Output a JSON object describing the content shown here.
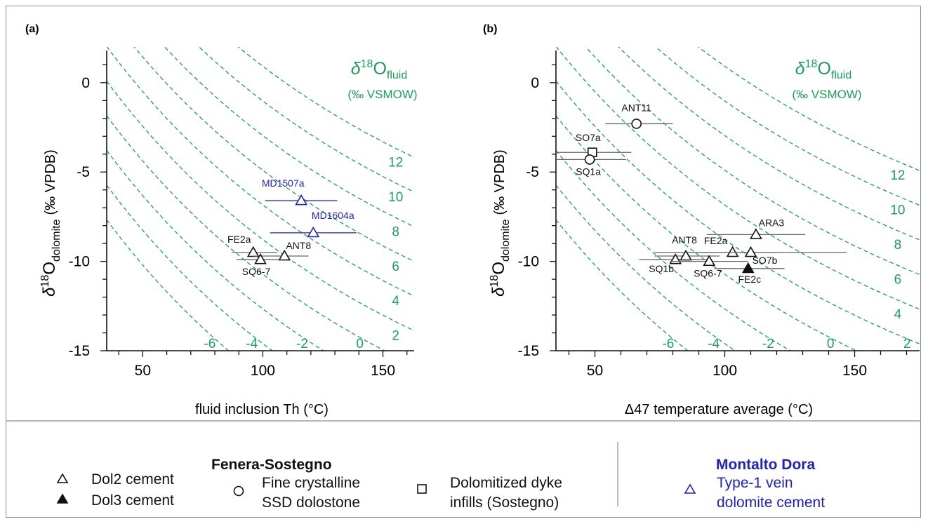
{
  "panels": [
    {
      "label": "(a)",
      "xlabel": "fluid inclusion Th (°C)",
      "ylabel_main": "δ",
      "ylabel_sup": "18",
      "ylabel_o": "O",
      "ylabel_sub": "dolomite",
      "ylabel_unit": "(‰ VPDB)",
      "annot_line1": "δ",
      "annot_sup": "18",
      "annot_o": "O",
      "annot_sub": "fluid",
      "annot_line2": "(‰ VSMOW)"
    },
    {
      "label": "(b)",
      "xlabel": "Δ47 temperature average (°C)",
      "ylabel_main": "δ",
      "ylabel_sup": "18",
      "ylabel_o": "O",
      "ylabel_sub": "dolomite",
      "ylabel_unit": "(‰ VPDB)",
      "annot_line1": "δ",
      "annot_sup": "18",
      "annot_o": "O",
      "annot_sub": "fluid",
      "annot_line2": "(‰ VSMOW)"
    }
  ],
  "chart_data": [
    {
      "type": "scatter",
      "title": "(a)",
      "xlabel": "fluid inclusion Th (°C)",
      "ylabel": "δ18O dolomite (‰ VPDB)",
      "xlim": [
        35,
        163
      ],
      "ylim": [
        -15,
        1.8
      ],
      "xticks": [
        50,
        100,
        150
      ],
      "yticks": [
        0,
        -5,
        -10,
        -15
      ],
      "isolines": {
        "label": "δ18O fluid (‰ VSMOW)",
        "values": [
          -6,
          -4,
          -2,
          0,
          2,
          4,
          6,
          8,
          10,
          12
        ],
        "color": "#1aa05a",
        "style": "dashed"
      },
      "points": [
        {
          "label": "FE2a",
          "x": 96,
          "y": -9.5,
          "xerr": [
            87,
            106
          ],
          "symbol": "open-triangle",
          "color": "#111111",
          "group": "Dol2 cement"
        },
        {
          "label": "ANT8",
          "x": 109,
          "y": -9.7,
          "xerr": [
            96,
            119
          ],
          "symbol": "open-triangle",
          "color": "#111111",
          "group": "Dol2 cement"
        },
        {
          "label": "SQ6-7",
          "x": 99,
          "y": -9.9,
          "xerr": [
            89,
            110
          ],
          "symbol": "open-triangle",
          "color": "#111111",
          "group": "Dol2 cement"
        },
        {
          "label": "MD1507a",
          "x": 116,
          "y": -6.6,
          "xerr": [
            101,
            131
          ],
          "symbol": "open-triangle",
          "color": "#2222bb",
          "group": "Type-1 vein dolomite cement"
        },
        {
          "label": "MD1604a",
          "x": 121,
          "y": -8.4,
          "xerr": [
            103,
            139
          ],
          "symbol": "open-triangle",
          "color": "#2222bb",
          "group": "Type-1 vein dolomite cement"
        }
      ]
    },
    {
      "type": "scatter",
      "title": "(b)",
      "xlabel": "Δ47 temperature average (°C)",
      "ylabel": "δ18O dolomite (‰ VPDB)",
      "xlim": [
        35,
        175
      ],
      "ylim": [
        -15,
        1.8
      ],
      "xticks": [
        50,
        100,
        150
      ],
      "yticks": [
        0,
        -5,
        -10,
        -15
      ],
      "isolines": {
        "label": "δ18O fluid (‰ VSMOW)",
        "values": [
          -6,
          -4,
          -2,
          0,
          2,
          4,
          6,
          8,
          10,
          12
        ],
        "color": "#1aa05a",
        "style": "dashed"
      },
      "points": [
        {
          "label": "ANT11",
          "x": 66,
          "y": -2.3,
          "xerr": [
            54,
            80
          ],
          "symbol": "open-circle",
          "color": "#111111",
          "group": "Fine crystalline SSD dolostone"
        },
        {
          "label": "SO7a",
          "x": 49,
          "y": -3.9,
          "xerr": [
            35,
            64
          ],
          "symbol": "open-square",
          "color": "#111111",
          "group": "Dolomitized dyke infills (Sostegno)"
        },
        {
          "label": "SQ1a",
          "x": 48,
          "y": -4.3,
          "xerr": [
            35,
            62
          ],
          "symbol": "open-circle",
          "color": "#111111",
          "group": "Fine crystalline SSD dolostone"
        },
        {
          "label": "ARA3",
          "x": 112,
          "y": -8.5,
          "xerr": [
            93,
            131
          ],
          "symbol": "open-triangle",
          "color": "#111111",
          "group": "Dol2 cement"
        },
        {
          "label": "FE2a",
          "x": 103,
          "y": -9.5,
          "xerr": [
            86,
            120
          ],
          "symbol": "open-triangle",
          "color": "#111111",
          "group": "Dol2 cement"
        },
        {
          "label": "SO7b",
          "x": 110,
          "y": -9.5,
          "xerr": [
            73,
            147
          ],
          "symbol": "open-triangle",
          "color": "#111111",
          "group": "Dol2 cement"
        },
        {
          "label": "ANT8",
          "x": 85,
          "y": -9.7,
          "xerr": [
            73,
            98
          ],
          "symbol": "open-triangle",
          "color": "#111111",
          "group": "Dol2 cement"
        },
        {
          "label": "SQ1b",
          "x": 81,
          "y": -9.9,
          "xerr": [
            67,
            94
          ],
          "symbol": "open-triangle",
          "color": "#111111",
          "group": "Dol2 cement"
        },
        {
          "label": "SQ6-7",
          "x": 94,
          "y": -10.0,
          "xerr": [
            79,
            109
          ],
          "symbol": "open-triangle",
          "color": "#111111",
          "group": "Dol2 cement"
        },
        {
          "label": "FE2c",
          "x": 109,
          "y": -10.4,
          "xerr": [
            96,
            123
          ],
          "symbol": "filled-triangle",
          "color": "#111111",
          "group": "Dol3 cement"
        }
      ]
    }
  ],
  "legend": {
    "left_title": "Fenera-Sostegno",
    "right_title": "Montalto Dora",
    "right_title_color": "#2222bb",
    "items": [
      {
        "symbol": "open-triangle",
        "line1": "Dol2 cement",
        "line2": ""
      },
      {
        "symbol": "filled-triangle",
        "line1": "Dol3 cement",
        "line2": ""
      },
      {
        "symbol": "open-circle",
        "line1": "Fine crystalline",
        "line2": "SSD dolostone"
      },
      {
        "symbol": "open-square",
        "line1": "Dolomitized dyke",
        "line2": "infills (Sostegno)"
      },
      {
        "symbol": "open-triangle-blue",
        "line1": "Type-1 vein",
        "line2": "dolomite cement"
      }
    ]
  }
}
